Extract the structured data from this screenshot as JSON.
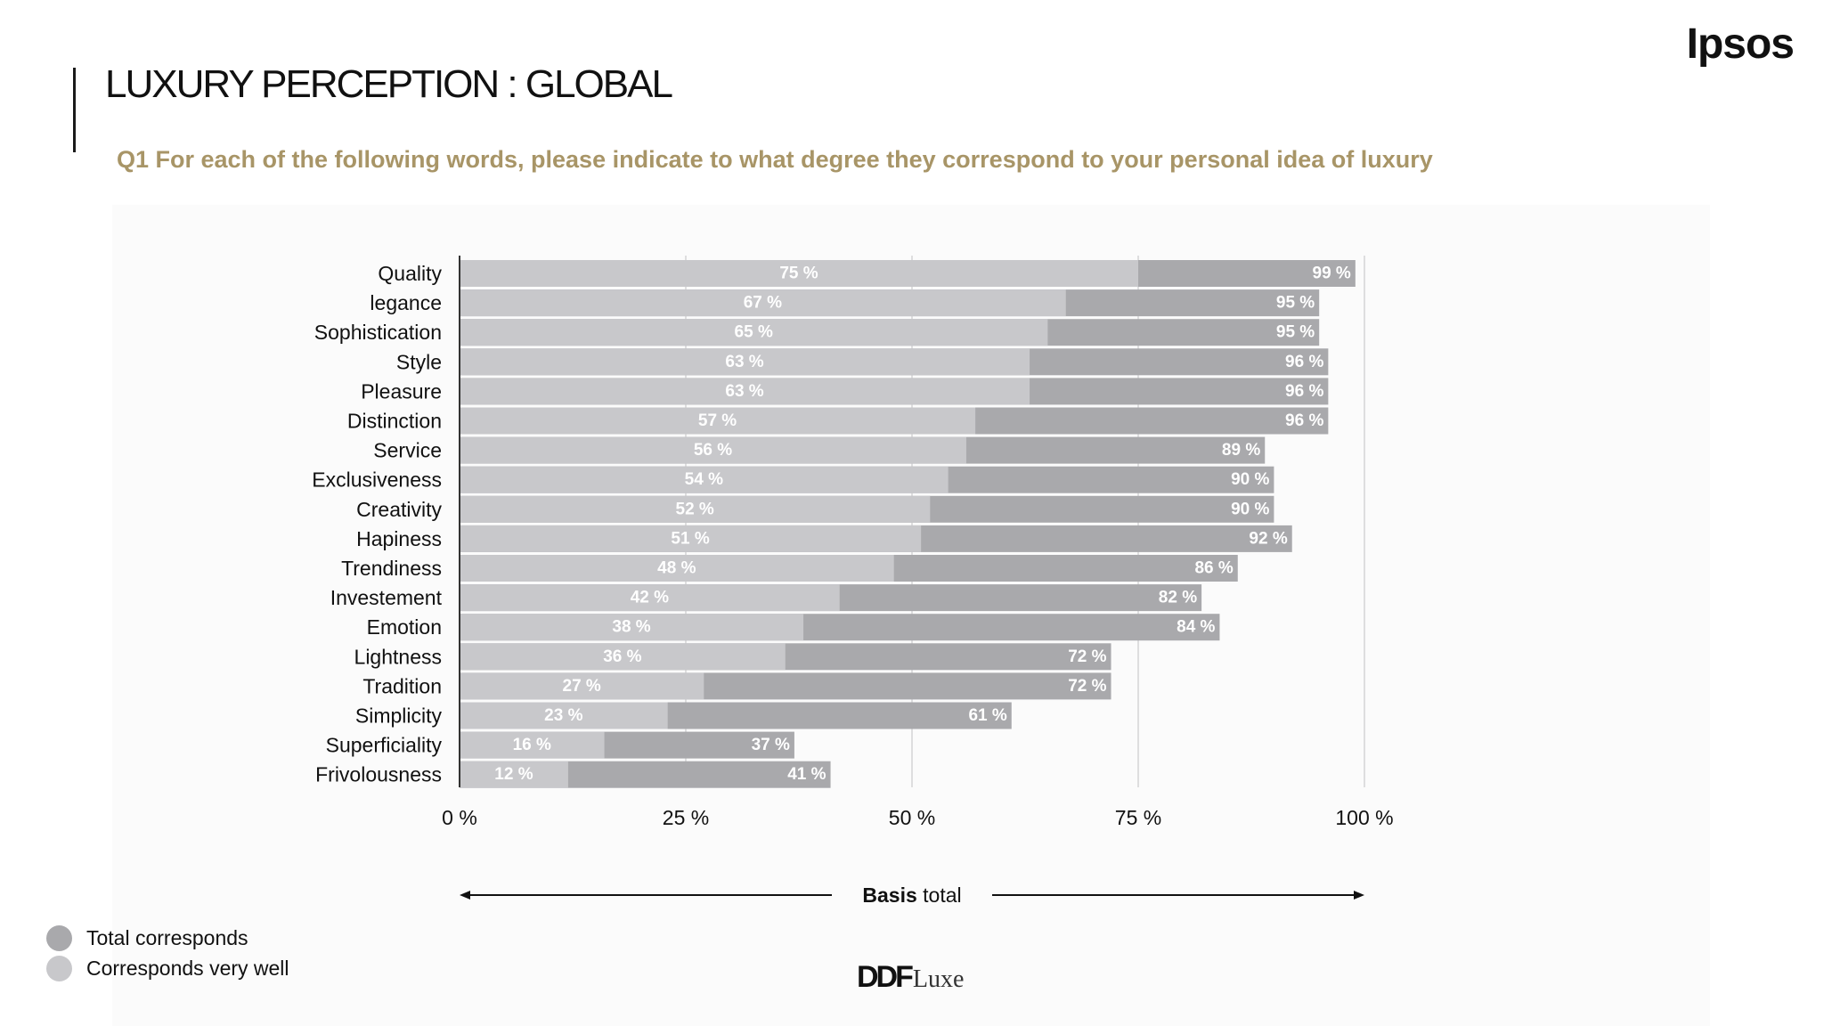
{
  "header": {
    "title": "LUXURY PERCEPTION : GLOBAL",
    "question": "Q1 For each of the following words, please indicate to what degree they correspond to your personal idea of luxury",
    "brand": "Ipsos"
  },
  "legend": {
    "items": [
      {
        "label": "Total corresponds",
        "color": "#a9a9ac"
      },
      {
        "label": "Corresponds very well",
        "color": "#c8c8cb"
      }
    ]
  },
  "footer": {
    "logo_main": "DDF",
    "logo_sub": "Luxe"
  },
  "chart_data": {
    "type": "bar",
    "orientation": "horizontal",
    "categories": [
      "Quality",
      "legance",
      "Sophistication",
      "Style",
      "Pleasure",
      "Distinction",
      "Service",
      "Exclusiveness",
      "Creativity",
      "Hapiness",
      "Trendiness",
      "Investement",
      "Emotion",
      "Lightness",
      "Tradition",
      "Simplicity",
      "Superficiality",
      "Frivolousness"
    ],
    "series": [
      {
        "name": "Corresponds very well",
        "color": "#c8c8cb",
        "values": [
          75,
          67,
          65,
          63,
          63,
          57,
          56,
          54,
          52,
          51,
          48,
          42,
          38,
          36,
          27,
          23,
          16,
          12
        ]
      },
      {
        "name": "Total corresponds",
        "color": "#a9a9ac",
        "values": [
          99,
          95,
          95,
          96,
          96,
          96,
          89,
          90,
          90,
          92,
          86,
          82,
          84,
          72,
          72,
          61,
          37,
          41
        ]
      }
    ],
    "xlim": [
      0,
      100
    ],
    "xticks": [
      "0 %",
      "25 %",
      "50 %",
      "75 %",
      "100 %"
    ],
    "value_suffix": " %",
    "grid": true,
    "axis_caption_bold": "Basis",
    "axis_caption_rest": " total",
    "legend_position": "bottom-left"
  }
}
